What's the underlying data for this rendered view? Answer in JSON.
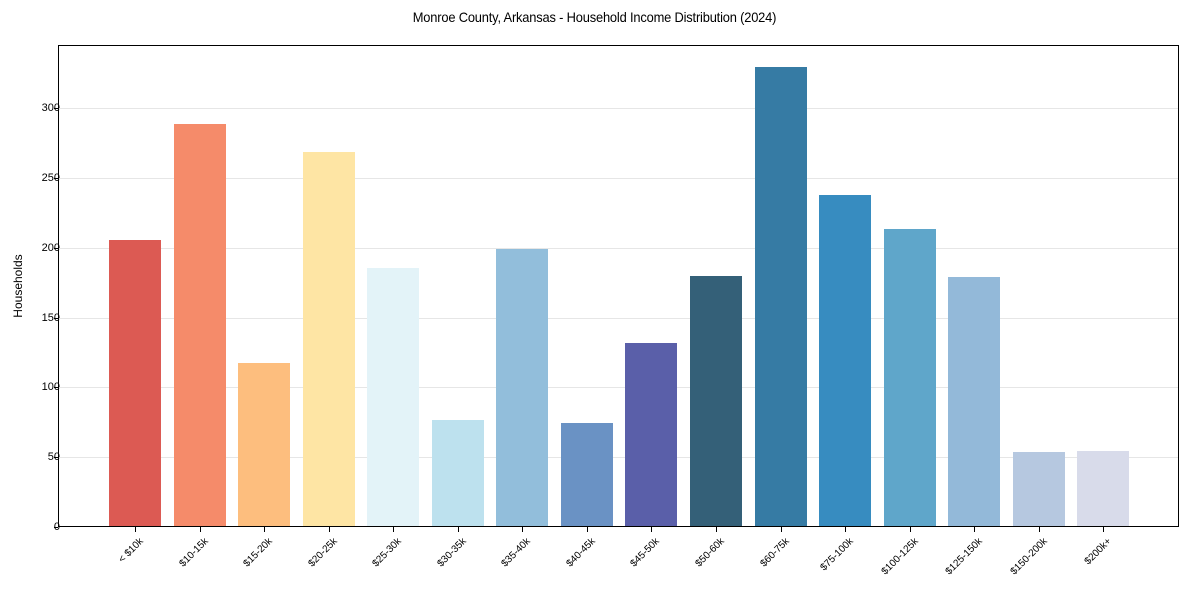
{
  "chart_data": {
    "type": "bar",
    "title": "Monroe County, Arkansas - Household Income Distribution (2024)",
    "xlabel": "",
    "ylabel": "Households",
    "ylim": [
      0,
      345
    ],
    "yticks": [
      0,
      50,
      100,
      150,
      200,
      250,
      300
    ],
    "grid": true,
    "legend": null,
    "categories": [
      "< $10k",
      "$10-15k",
      "$15-20k",
      "$20-25k",
      "$25-30k",
      "$30-35k",
      "$35-40k",
      "$40-45k",
      "$45-50k",
      "$50-60k",
      "$60-75k",
      "$75-100k",
      "$100-125k",
      "$125-150k",
      "$150-200k",
      "$200k+"
    ],
    "values": [
      205,
      288,
      117,
      268,
      185,
      76,
      198,
      74,
      131,
      179,
      329,
      237,
      213,
      178,
      53,
      54
    ],
    "colors": [
      "#dc5a53",
      "#f58b6a",
      "#fdbe7e",
      "#fee5a4",
      "#e3f3f8",
      "#bde1ee",
      "#92bedb",
      "#6a92c4",
      "#5a5fa9",
      "#346078",
      "#367ba4",
      "#378cc0",
      "#5fa6ca",
      "#93b9d9",
      "#b6c8e0",
      "#d8dbea"
    ]
  }
}
